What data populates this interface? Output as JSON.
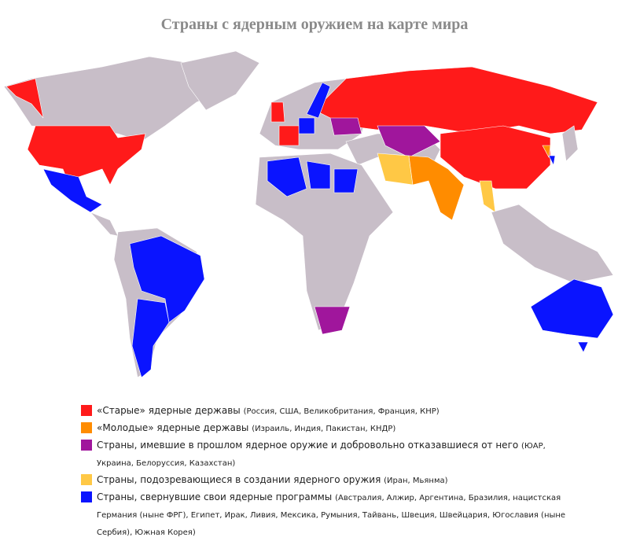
{
  "title": "Страны с ядерным оружием на карте мира",
  "land_color": "#c8bec8",
  "legend": [
    {
      "label": "«Старые» ядерные державы",
      "note": "(Россия, США, Великобритания, Франция, КНР)",
      "color": "#ff1a1a"
    },
    {
      "label": "«Молодые» ядерные державы",
      "note": "(Израиль, Индия, Пакистан, КНДР)",
      "color": "#ff8c00"
    },
    {
      "label": "Страны, имевшие в прошлом ядерное оружие и добровольно отказавшиеся от него",
      "note": "(ЮАР, Украина, Белоруссия, Казахстан)",
      "color": "#a0169c"
    },
    {
      "label": "Страны, подозревающиеся в создании ядерного оружия",
      "note": "(Иран, Мьянма)",
      "color": "#ffc845"
    },
    {
      "label": "Страны, свернувшие свои ядерные программы",
      "note": "(Австралия, Алжир, Аргентина, Бразилия, нацистская Германия (ныне ФРГ), Египет, Ирак, Ливия, Мексика, Румыния, Тайвань, Швеция, Швейцария, Югославия (ныне Сербия), Южная Корея)",
      "color": "#0a14ff"
    }
  ]
}
